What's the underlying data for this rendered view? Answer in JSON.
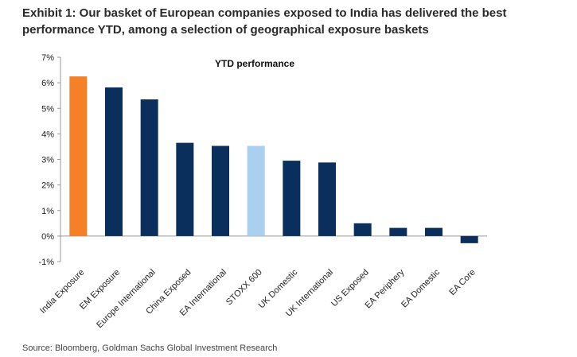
{
  "exhibit_title": "Exhibit 1: Our basket of European companies exposed to India has delivered the best performance YTD, among a selection of geographical exposure baskets",
  "source": "Source: Bloomberg, Goldman Sachs Global Investment Research",
  "chart_data": {
    "type": "bar",
    "title": "YTD performance",
    "xlabel": "",
    "ylabel": "",
    "ylim": [
      -1,
      7
    ],
    "yticks": [
      -1,
      0,
      1,
      2,
      3,
      4,
      5,
      6,
      7
    ],
    "ytick_labels": [
      "-1%",
      "0%",
      "1%",
      "2%",
      "3%",
      "4%",
      "5%",
      "6%",
      "7%"
    ],
    "grid": false,
    "categories": [
      "India Exposure",
      "EM Exposure",
      "Europe International",
      "China Exposed",
      "EA International",
      "STOXX 600",
      "UK Domestic",
      "UK International",
      "US Exposed",
      "EA Periphery",
      "EA Domestic",
      "EA Core"
    ],
    "values": [
      6.25,
      5.82,
      5.35,
      3.65,
      3.53,
      3.53,
      2.95,
      2.88,
      0.5,
      0.32,
      0.32,
      -0.28
    ],
    "colors": [
      "#F58025",
      "#0A2F5C",
      "#0A2F5C",
      "#0A2F5C",
      "#0A2F5C",
      "#A9D0EE",
      "#0A2F5C",
      "#0A2F5C",
      "#0A2F5C",
      "#0A2F5C",
      "#0A2F5C",
      "#0A2F5C"
    ]
  }
}
